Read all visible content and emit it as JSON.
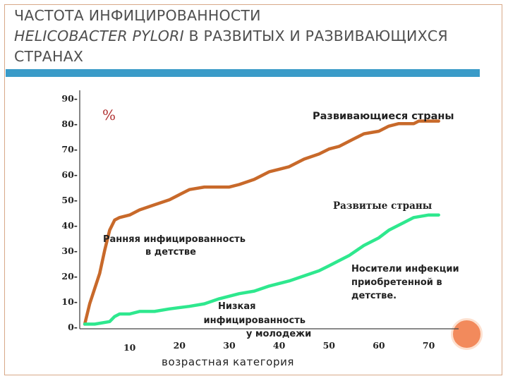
{
  "title": {
    "part1": "ЧАСТОТА ИНФИЦИРОВАННОСТИ",
    "part2": "HELICOBACTER PYLORI",
    "part3": "В РАЗВИТЫХ И РАЗВИВАЮЩИХСЯ СТРАНАХ"
  },
  "colors": {
    "accent_rule": "#3a9bc8",
    "developing": "#c8692a",
    "developed": "#2ee88e",
    "ornament": "#f28a5c"
  },
  "chart_data": {
    "type": "line",
    "xlabel": "возрастная категория",
    "ylabel": "%",
    "xlim": [
      0,
      76
    ],
    "ylim": [
      0,
      92
    ],
    "y_ticks": [
      0,
      10,
      20,
      30,
      40,
      50,
      60,
      70,
      80,
      90
    ],
    "y_tick_labels": [
      "0-",
      "10-",
      "20-",
      "30-",
      "40-",
      "50-",
      "60-",
      "70-",
      "80-",
      "90-"
    ],
    "x_ticks": [
      10,
      20,
      30,
      40,
      50,
      60,
      70
    ],
    "x_tick_labels": [
      "10",
      "20",
      "30",
      "40",
      "50",
      "60",
      "70"
    ],
    "grid": false,
    "series": [
      {
        "name": "Развивающиеся страны",
        "x": [
          1,
          2,
          3,
          4,
          5,
          6,
          7,
          8,
          10,
          12,
          15,
          18,
          20,
          22,
          25,
          27,
          30,
          32,
          35,
          38,
          40,
          42,
          45,
          48,
          50,
          52,
          55,
          57,
          60,
          62,
          64,
          67,
          68,
          72
        ],
        "values": [
          1,
          9,
          15,
          21,
          30,
          38,
          42,
          43,
          44,
          46,
          48,
          50,
          52,
          54,
          55,
          55,
          55,
          56,
          58,
          61,
          62,
          63,
          66,
          68,
          70,
          71,
          74,
          76,
          77,
          79,
          80,
          80,
          81,
          81
        ]
      },
      {
        "name": "Развитые страны",
        "x": [
          1,
          3,
          6,
          7,
          8,
          10,
          12,
          15,
          18,
          22,
          25,
          28,
          30,
          32,
          35,
          38,
          40,
          42,
          45,
          48,
          50,
          52,
          54,
          57,
          60,
          62,
          65,
          67,
          70,
          72
        ],
        "values": [
          1,
          1,
          2,
          4,
          5,
          5,
          6,
          6,
          7,
          8,
          9,
          11,
          12,
          13,
          14,
          16,
          17,
          18,
          20,
          22,
          24,
          26,
          28,
          32,
          35,
          38,
          41,
          43,
          44,
          44
        ]
      }
    ],
    "annotations": {
      "early": [
        "Ранняя инфицированность",
        "в детстве"
      ],
      "low": [
        "Низкая",
        "инфицированность",
        "у молодежи"
      ],
      "carriers": [
        "Носители инфекции",
        "приобретенной в",
        "детстве."
      ]
    }
  }
}
